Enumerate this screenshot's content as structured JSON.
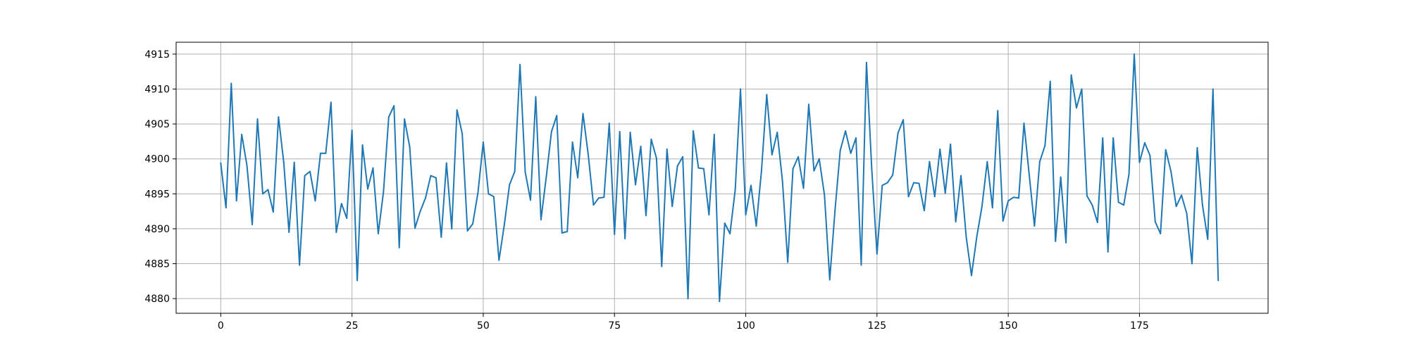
{
  "chart_data": {
    "type": "line",
    "title": "",
    "xlabel": "",
    "ylabel": "",
    "xlim": [
      -8.5,
      199.5
    ],
    "ylim": [
      4877.9,
      4916.7
    ],
    "grid": true,
    "x_ticks": [
      0,
      25,
      50,
      75,
      100,
      125,
      150,
      175
    ],
    "x_tick_labels": [
      "0",
      "25",
      "50",
      "75",
      "100",
      "125",
      "150",
      "175"
    ],
    "y_ticks": [
      4880,
      4885,
      4890,
      4895,
      4900,
      4905,
      4910,
      4915
    ],
    "y_tick_labels": [
      "4880",
      "4885",
      "4890",
      "4895",
      "4900",
      "4905",
      "4910",
      "4915"
    ],
    "series": [
      {
        "color": "#1f77b4",
        "x_start": 0,
        "x_step": 1,
        "values": [
          4899.4,
          4893.0,
          4910.8,
          4894.0,
          4903.5,
          4899.0,
          4890.6,
          4905.7,
          4895.0,
          4895.6,
          4892.4,
          4906.0,
          4899.5,
          4889.5,
          4899.5,
          4884.8,
          4897.6,
          4898.2,
          4894.0,
          4900.8,
          4900.8,
          4908.1,
          4889.5,
          4893.6,
          4891.5,
          4904.1,
          4882.6,
          4902.0,
          4895.7,
          4898.7,
          4889.3,
          4895.3,
          4906.0,
          4907.6,
          4887.3,
          4905.7,
          4901.7,
          4890.1,
          4892.5,
          4894.4,
          4897.6,
          4897.3,
          4888.8,
          4899.4,
          4890.0,
          4907.0,
          4903.6,
          4889.7,
          4890.7,
          4895.2,
          4902.4,
          4895.0,
          4894.6,
          4885.5,
          4890.5,
          4896.3,
          4898.2,
          4913.5,
          4898.1,
          4894.1,
          4908.9,
          4891.3,
          4897.4,
          4903.9,
          4906.2,
          4889.4,
          4889.6,
          4902.4,
          4897.3,
          4906.5,
          4900.6,
          4893.4,
          4894.4,
          4894.5,
          4905.1,
          4889.2,
          4903.9,
          4888.6,
          4903.8,
          4896.3,
          4901.8,
          4891.9,
          4902.8,
          4900.1,
          4884.6,
          4901.4,
          4893.2,
          4899.0,
          4900.3,
          4880.0,
          4904.0,
          4898.7,
          4898.6,
          4892.0,
          4903.5,
          4879.6,
          4890.8,
          4889.3,
          4895.6,
          4910.0,
          4892.0,
          4896.2,
          4890.4,
          4898.3,
          4909.2,
          4900.6,
          4903.8,
          4896.8,
          4885.2,
          4898.6,
          4900.3,
          4895.8,
          4907.8,
          4898.3,
          4900.0,
          4894.8,
          4882.7,
          4892.6,
          4901.2,
          4904.0,
          4900.8,
          4903.0,
          4884.8,
          4913.8,
          4898.6,
          4886.4,
          4896.2,
          4896.6,
          4897.7,
          4903.7,
          4905.6,
          4894.6,
          4896.6,
          4896.5,
          4892.6,
          4899.6,
          4894.6,
          4901.4,
          4895.1,
          4902.1,
          4891.0,
          4897.6,
          4888.8,
          4883.3,
          4888.8,
          4893.2,
          4899.6,
          4893.0,
          4906.9,
          4891.1,
          4894.0,
          4894.5,
          4894.4,
          4905.1,
          4897.7,
          4890.4,
          4899.6,
          4901.9,
          4911.1,
          4888.2,
          4897.4,
          4888.0,
          4912.0,
          4907.3,
          4910.0,
          4894.7,
          4893.4,
          4890.9,
          4903.0,
          4886.7,
          4903.0,
          4893.8,
          4893.4,
          4897.8,
          4915.0,
          4899.5,
          4902.3,
          4900.5,
          4891.0,
          4889.3,
          4901.3,
          4898.2,
          4893.2,
          4894.8,
          4892.2,
          4885.0,
          4901.6,
          4893.4,
          4888.5,
          4910.0,
          4882.6
        ]
      }
    ]
  }
}
